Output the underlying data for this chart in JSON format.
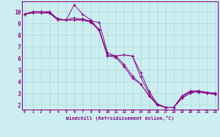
{
  "xlabel": "Windchill (Refroidissement éolien,°C)",
  "background_color": "#cceef0",
  "line_color": "#880088",
  "grid_color": "#a8d8da",
  "series": [
    [
      9.8,
      10.0,
      10.0,
      10.0,
      9.4,
      9.3,
      10.6,
      9.8,
      9.3,
      8.4,
      6.3,
      6.2,
      6.3,
      6.2,
      4.4,
      3.0,
      2.0,
      1.8,
      1.8,
      2.6,
      3.0,
      3.2,
      3.0,
      3.0
    ],
    [
      9.8,
      10.0,
      10.0,
      10.0,
      9.4,
      9.3,
      9.5,
      9.3,
      9.2,
      9.1,
      6.5,
      6.2,
      6.3,
      6.2,
      4.8,
      3.2,
      2.1,
      1.8,
      1.8,
      2.6,
      3.2,
      3.2,
      3.0,
      3.0
    ],
    [
      9.8,
      10.0,
      10.0,
      9.9,
      9.4,
      9.3,
      9.3,
      9.4,
      9.2,
      8.5,
      6.3,
      6.2,
      5.5,
      4.5,
      3.8,
      2.8,
      2.0,
      1.8,
      1.8,
      2.8,
      3.2,
      3.2,
      3.1,
      3.0
    ],
    [
      9.8,
      9.9,
      9.9,
      9.9,
      9.3,
      9.3,
      9.3,
      9.3,
      9.1,
      8.4,
      6.2,
      6.1,
      5.3,
      4.3,
      3.8,
      2.8,
      2.0,
      1.8,
      1.8,
      2.8,
      3.1,
      3.1,
      3.0,
      2.9
    ]
  ],
  "x_ticks": [
    0,
    1,
    2,
    3,
    4,
    5,
    6,
    7,
    8,
    9,
    10,
    11,
    12,
    13,
    14,
    15,
    16,
    17,
    18,
    19,
    20,
    21,
    22,
    23
  ],
  "y_ticks": [
    2,
    3,
    4,
    5,
    6,
    7,
    8,
    9,
    10
  ],
  "xlim": [
    -0.3,
    23.3
  ],
  "ylim": [
    1.6,
    10.9
  ]
}
